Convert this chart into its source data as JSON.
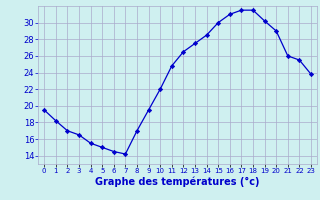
{
  "hours": [
    0,
    1,
    2,
    3,
    4,
    5,
    6,
    7,
    8,
    9,
    10,
    11,
    12,
    13,
    14,
    15,
    16,
    17,
    18,
    19,
    20,
    21,
    22,
    23
  ],
  "temps": [
    19.5,
    18.2,
    17.0,
    16.5,
    15.5,
    15.0,
    14.5,
    14.2,
    17.0,
    19.5,
    22.0,
    24.8,
    26.5,
    27.5,
    28.5,
    30.0,
    31.0,
    31.5,
    31.5,
    30.2,
    29.0,
    26.0,
    25.5,
    23.8
  ],
  "bg_color": "#cff0f0",
  "grid_color": "#aaaacc",
  "line_color": "#0000cc",
  "marker_color": "#0000cc",
  "xlabel": "Graphe des températures (°c)",
  "tick_label_color": "#0000cc",
  "ylabel_color": "#0000cc",
  "ylim": [
    13,
    32
  ],
  "yticks": [
    14,
    16,
    18,
    20,
    22,
    24,
    26,
    28,
    30
  ],
  "xlim": [
    -0.5,
    23.5
  ],
  "figsize": [
    3.2,
    2.0
  ],
  "dpi": 100
}
